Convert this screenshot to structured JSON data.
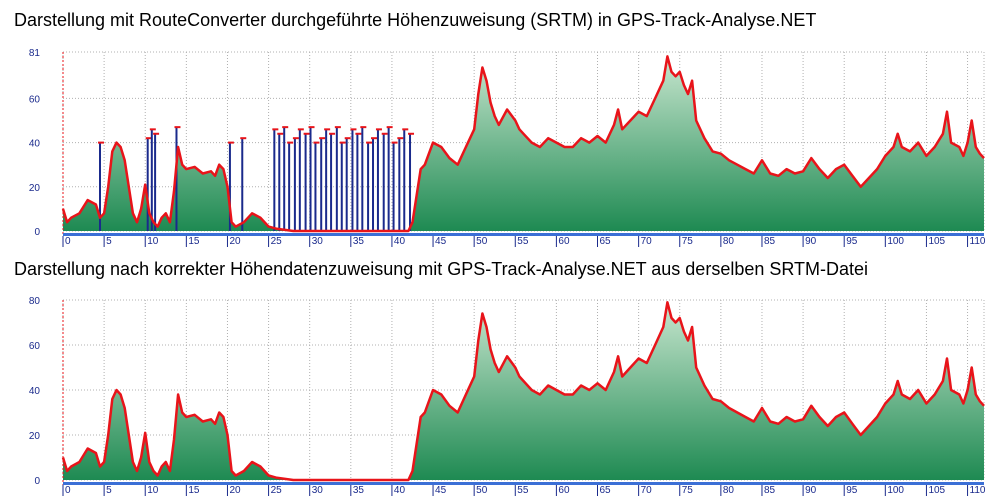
{
  "chart_data": [
    {
      "type": "area",
      "title": "Darstellung mit RouteConverter durchgeführte Höhenzuweisung (SRTM) in GPS-Track-Analyse.NET",
      "xlabel": "",
      "ylabel": "",
      "ylim": [
        0,
        81
      ],
      "xlim": [
        0,
        112
      ],
      "y_ticks": [
        0,
        20,
        40,
        60,
        81
      ],
      "x_ticks": [
        0,
        5,
        10,
        15,
        20,
        25,
        30,
        35,
        40,
        45,
        50,
        55,
        60,
        65,
        70,
        75,
        80,
        85,
        90,
        95,
        100,
        105,
        110
      ],
      "grid": true,
      "colors": {
        "line": "#e8141a",
        "fill_top": "#c8e6cf",
        "fill_bottom": "#1e8a52",
        "spikes": "#1a2a8c",
        "axis_text": "#1a2a8c"
      },
      "series": [
        {
          "values": [
            [
              0,
              10
            ],
            [
              0.5,
              4
            ],
            [
              1,
              6
            ],
            [
              2,
              8
            ],
            [
              3,
              14
            ],
            [
              4,
              12
            ],
            [
              4.5,
              6
            ],
            [
              5,
              8
            ],
            [
              5.5,
              20
            ],
            [
              6,
              36
            ],
            [
              6.5,
              40
            ],
            [
              7,
              38
            ],
            [
              7.5,
              32
            ],
            [
              8,
              20
            ],
            [
              8.5,
              8
            ],
            [
              9,
              4
            ],
            [
              9.5,
              10
            ],
            [
              10,
              21
            ],
            [
              10.5,
              8
            ],
            [
              11,
              4
            ],
            [
              11.5,
              2
            ],
            [
              12,
              6
            ],
            [
              12.5,
              8
            ],
            [
              13,
              4
            ],
            [
              13.5,
              18
            ],
            [
              14,
              38
            ],
            [
              14.5,
              30
            ],
            [
              15,
              28
            ],
            [
              16,
              29
            ],
            [
              17,
              26
            ],
            [
              18,
              27
            ],
            [
              18.5,
              25
            ],
            [
              19,
              30
            ],
            [
              19.5,
              28
            ],
            [
              20,
              20
            ],
            [
              20.5,
              4
            ],
            [
              21,
              2
            ],
            [
              22,
              4
            ],
            [
              23,
              8
            ],
            [
              24,
              6
            ],
            [
              25,
              2
            ],
            [
              26,
              1
            ],
            [
              28,
              0
            ],
            [
              30,
              0
            ],
            [
              35,
              0
            ],
            [
              40,
              0
            ],
            [
              42,
              0
            ],
            [
              42.5,
              4
            ],
            [
              43,
              16
            ],
            [
              43.5,
              28
            ],
            [
              44,
              30
            ],
            [
              45,
              40
            ],
            [
              46,
              38
            ],
            [
              47,
              33
            ],
            [
              48,
              30
            ],
            [
              49,
              38
            ],
            [
              50,
              46
            ],
            [
              50.5,
              62
            ],
            [
              51,
              74
            ],
            [
              51.5,
              68
            ],
            [
              52,
              58
            ],
            [
              52.5,
              52
            ],
            [
              53,
              48
            ],
            [
              54,
              55
            ],
            [
              55,
              50
            ],
            [
              55.5,
              46
            ],
            [
              56,
              44
            ],
            [
              57,
              40
            ],
            [
              58,
              38
            ],
            [
              59,
              42
            ],
            [
              60,
              40
            ],
            [
              61,
              38
            ],
            [
              62,
              38
            ],
            [
              63,
              42
            ],
            [
              64,
              40
            ],
            [
              65,
              43
            ],
            [
              66,
              40
            ],
            [
              67,
              48
            ],
            [
              67.5,
              55
            ],
            [
              68,
              46
            ],
            [
              69,
              50
            ],
            [
              70,
              54
            ],
            [
              71,
              52
            ],
            [
              72,
              60
            ],
            [
              73,
              68
            ],
            [
              73.5,
              79
            ],
            [
              74,
              72
            ],
            [
              74.5,
              70
            ],
            [
              75,
              72
            ],
            [
              75.5,
              66
            ],
            [
              76,
              62
            ],
            [
              76.5,
              68
            ],
            [
              77,
              50
            ],
            [
              78,
              42
            ],
            [
              79,
              36
            ],
            [
              80,
              35
            ],
            [
              81,
              32
            ],
            [
              82,
              30
            ],
            [
              83,
              28
            ],
            [
              84,
              26
            ],
            [
              85,
              32
            ],
            [
              86,
              26
            ],
            [
              87,
              25
            ],
            [
              88,
              28
            ],
            [
              89,
              26
            ],
            [
              90,
              27
            ],
            [
              91,
              33
            ],
            [
              92,
              28
            ],
            [
              93,
              24
            ],
            [
              94,
              28
            ],
            [
              95,
              30
            ],
            [
              96,
              25
            ],
            [
              97,
              20
            ],
            [
              98,
              24
            ],
            [
              99,
              28
            ],
            [
              100,
              34
            ],
            [
              101,
              38
            ],
            [
              101.5,
              44
            ],
            [
              102,
              38
            ],
            [
              103,
              36
            ],
            [
              104,
              40
            ],
            [
              105,
              34
            ],
            [
              106,
              38
            ],
            [
              107,
              44
            ],
            [
              107.5,
              54
            ],
            [
              108,
              40
            ],
            [
              109,
              38
            ],
            [
              109.5,
              34
            ],
            [
              110,
              40
            ],
            [
              110.5,
              50
            ],
            [
              111,
              38
            ],
            [
              111.5,
              35
            ],
            [
              112,
              33
            ]
          ]
        }
      ],
      "spike_x": [
        4.5,
        10.3,
        10.8,
        11.2,
        13.8,
        20.3,
        21.8,
        25.7,
        26.3,
        26.9,
        27.5,
        28.2,
        28.8,
        29.5,
        30.1,
        30.7,
        31.4,
        32.0,
        32.6,
        33.3,
        33.9,
        34.5,
        35.2,
        35.8,
        36.4,
        37.1,
        37.7,
        38.3,
        39.0,
        39.6,
        40.2,
        40.9,
        41.5,
        42.2
      ]
    },
    {
      "type": "area",
      "title": "Darstellung nach korrekter Höhendatenzuweisung mit GPS-Track-Analyse.NET aus derselben SRTM-Datei",
      "xlabel": "",
      "ylabel": "",
      "ylim": [
        0,
        80
      ],
      "xlim": [
        0,
        112
      ],
      "y_ticks": [
        0,
        20,
        40,
        60,
        80
      ],
      "x_ticks": [
        0,
        5,
        10,
        15,
        20,
        25,
        30,
        35,
        40,
        45,
        50,
        55,
        60,
        65,
        70,
        75,
        80,
        85,
        90,
        95,
        100,
        105,
        110
      ],
      "grid": true,
      "colors": {
        "line": "#e8141a",
        "fill_top": "#c8e6cf",
        "fill_bottom": "#1e8a52",
        "axis_text": "#1a2a8c"
      },
      "series": [
        {
          "values": [
            [
              0,
              10
            ],
            [
              0.5,
              4
            ],
            [
              1,
              6
            ],
            [
              2,
              8
            ],
            [
              3,
              14
            ],
            [
              4,
              12
            ],
            [
              4.5,
              6
            ],
            [
              5,
              8
            ],
            [
              5.5,
              20
            ],
            [
              6,
              36
            ],
            [
              6.5,
              40
            ],
            [
              7,
              38
            ],
            [
              7.5,
              32
            ],
            [
              8,
              20
            ],
            [
              8.5,
              8
            ],
            [
              9,
              4
            ],
            [
              9.5,
              10
            ],
            [
              10,
              21
            ],
            [
              10.5,
              8
            ],
            [
              11,
              4
            ],
            [
              11.5,
              2
            ],
            [
              12,
              6
            ],
            [
              12.5,
              8
            ],
            [
              13,
              4
            ],
            [
              13.5,
              18
            ],
            [
              14,
              38
            ],
            [
              14.5,
              30
            ],
            [
              15,
              28
            ],
            [
              16,
              29
            ],
            [
              17,
              26
            ],
            [
              18,
              27
            ],
            [
              18.5,
              25
            ],
            [
              19,
              30
            ],
            [
              19.5,
              28
            ],
            [
              20,
              20
            ],
            [
              20.5,
              4
            ],
            [
              21,
              2
            ],
            [
              22,
              4
            ],
            [
              23,
              8
            ],
            [
              24,
              6
            ],
            [
              25,
              2
            ],
            [
              26,
              1
            ],
            [
              28,
              0
            ],
            [
              30,
              0
            ],
            [
              35,
              0
            ],
            [
              40,
              0
            ],
            [
              42,
              0
            ],
            [
              42.5,
              4
            ],
            [
              43,
              16
            ],
            [
              43.5,
              28
            ],
            [
              44,
              30
            ],
            [
              45,
              40
            ],
            [
              46,
              38
            ],
            [
              47,
              33
            ],
            [
              48,
              30
            ],
            [
              49,
              38
            ],
            [
              50,
              46
            ],
            [
              50.5,
              62
            ],
            [
              51,
              74
            ],
            [
              51.5,
              68
            ],
            [
              52,
              58
            ],
            [
              52.5,
              52
            ],
            [
              53,
              48
            ],
            [
              54,
              55
            ],
            [
              55,
              50
            ],
            [
              55.5,
              46
            ],
            [
              56,
              44
            ],
            [
              57,
              40
            ],
            [
              58,
              38
            ],
            [
              59,
              42
            ],
            [
              60,
              40
            ],
            [
              61,
              38
            ],
            [
              62,
              38
            ],
            [
              63,
              42
            ],
            [
              64,
              40
            ],
            [
              65,
              43
            ],
            [
              66,
              40
            ],
            [
              67,
              48
            ],
            [
              67.5,
              55
            ],
            [
              68,
              46
            ],
            [
              69,
              50
            ],
            [
              70,
              54
            ],
            [
              71,
              52
            ],
            [
              72,
              60
            ],
            [
              73,
              68
            ],
            [
              73.5,
              79
            ],
            [
              74,
              72
            ],
            [
              74.5,
              70
            ],
            [
              75,
              72
            ],
            [
              75.5,
              66
            ],
            [
              76,
              62
            ],
            [
              76.5,
              68
            ],
            [
              77,
              50
            ],
            [
              78,
              42
            ],
            [
              79,
              36
            ],
            [
              80,
              35
            ],
            [
              81,
              32
            ],
            [
              82,
              30
            ],
            [
              83,
              28
            ],
            [
              84,
              26
            ],
            [
              85,
              32
            ],
            [
              86,
              26
            ],
            [
              87,
              25
            ],
            [
              88,
              28
            ],
            [
              89,
              26
            ],
            [
              90,
              27
            ],
            [
              91,
              33
            ],
            [
              92,
              28
            ],
            [
              93,
              24
            ],
            [
              94,
              28
            ],
            [
              95,
              30
            ],
            [
              96,
              25
            ],
            [
              97,
              20
            ],
            [
              98,
              24
            ],
            [
              99,
              28
            ],
            [
              100,
              34
            ],
            [
              101,
              38
            ],
            [
              101.5,
              44
            ],
            [
              102,
              38
            ],
            [
              103,
              36
            ],
            [
              104,
              40
            ],
            [
              105,
              34
            ],
            [
              106,
              38
            ],
            [
              107,
              44
            ],
            [
              107.5,
              54
            ],
            [
              108,
              40
            ],
            [
              109,
              38
            ],
            [
              109.5,
              34
            ],
            [
              110,
              40
            ],
            [
              110.5,
              50
            ],
            [
              111,
              38
            ],
            [
              111.5,
              35
            ],
            [
              112,
              33
            ]
          ]
        }
      ]
    }
  ]
}
